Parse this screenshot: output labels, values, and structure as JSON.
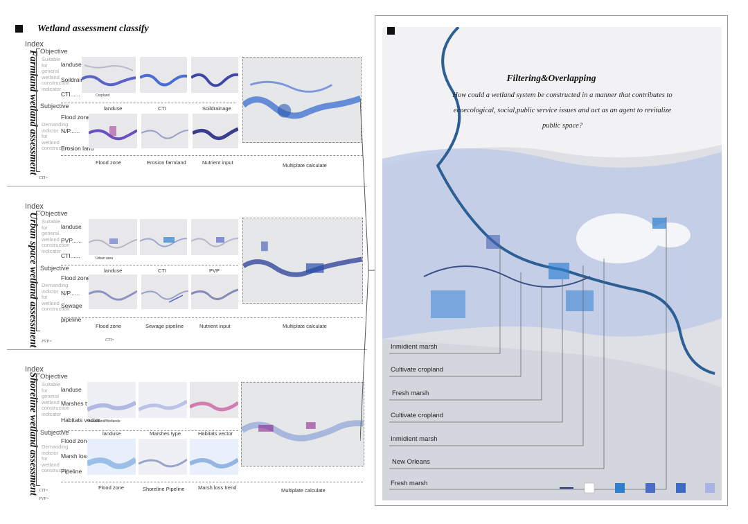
{
  "header": {
    "title": "Wetland assessment classify"
  },
  "sections": [
    {
      "title": "Farmland wetland assessment",
      "index_label": "Index",
      "objective_label": "Objective",
      "objective_desc": "Suitable for general wetland construction indicator",
      "subjective_label": "Subjective",
      "subjective_desc": "Demanding indictor for wetland construction",
      "row1_labels": [
        "landuse",
        "Soildrainage",
        "CTI......"
      ],
      "row2_labels": [
        "Flood zone",
        "N/P......",
        "Erosion land"
      ],
      "row1_captions": [
        "landuse",
        "CTI",
        "Soildrainage"
      ],
      "row2_captions": [
        "Flood zone",
        "Erosion farmland",
        "Nutrient input"
      ],
      "inset_legend": "Cropland",
      "big_caption": "Multiplate calculate",
      "footnotes": [
        "CTI="
      ]
    },
    {
      "title": "Urban space wetland assessment",
      "index_label": "Index",
      "objective_label": "Objective",
      "objective_desc": "Suitable for general wetland construction indicator",
      "subjective_label": "Subjective",
      "subjective_desc": "Demanding indictor for wetland construction",
      "row1_labels": [
        "landuse",
        "PVP......",
        "CTI......"
      ],
      "row2_labels": [
        "Flood zone",
        "N/P......",
        "Sewage",
        "pipeline"
      ],
      "row1_captions": [
        "landuse",
        "CTI",
        "PVP"
      ],
      "row2_captions": [
        "Flood zone",
        "Sewage pipeline",
        "Nutrient input"
      ],
      "inset_legend": "Urban area",
      "big_caption": "Multiplate calculate",
      "footnotes": [
        "PVP=",
        "CTI="
      ]
    },
    {
      "title": "Shoreline wetland assessment",
      "index_label": "Index",
      "objective_label": "Objective",
      "objective_desc": "Suitable for general wetland construction indicator",
      "subjective_label": "Subjective",
      "subjective_desc": "Demanding indictor for wetland construction",
      "row1_labels": [
        "landuse",
        "Marshes type",
        "Habitats vector"
      ],
      "row2_labels": [
        "Flood zone",
        "Marsh loss",
        "Pipeline"
      ],
      "row1_captions": [
        "landuse",
        "Marshes type",
        "Habitats vector"
      ],
      "row2_captions": [
        "Flood zone",
        "Shoreline Pipeline",
        "Marsh loss trend"
      ],
      "inset_legend": "Marshland/Wetlands",
      "big_caption": "Multiplate calculate",
      "footnotes": [
        "CTI=",
        "PVP="
      ]
    }
  ],
  "right_panel": {
    "title": "Filtering&Overlapping",
    "question": "How could a wetland system be constructed in a manner that contributes to ecoecological, social,public service issues and act as an agent to revitalize public space?",
    "labels": [
      "Inmidient marsh",
      "Cultivate cropland",
      "Fresh marsh",
      "Cultivate cropland",
      "Inmidient marsh",
      "New Orleans",
      "Fresh marsh"
    ]
  },
  "colors": {
    "accent_blue": "#2f7fd0",
    "deep_blue": "#27347e",
    "purple": "#8a2f8a",
    "light_blue": "#a6b4e6"
  }
}
